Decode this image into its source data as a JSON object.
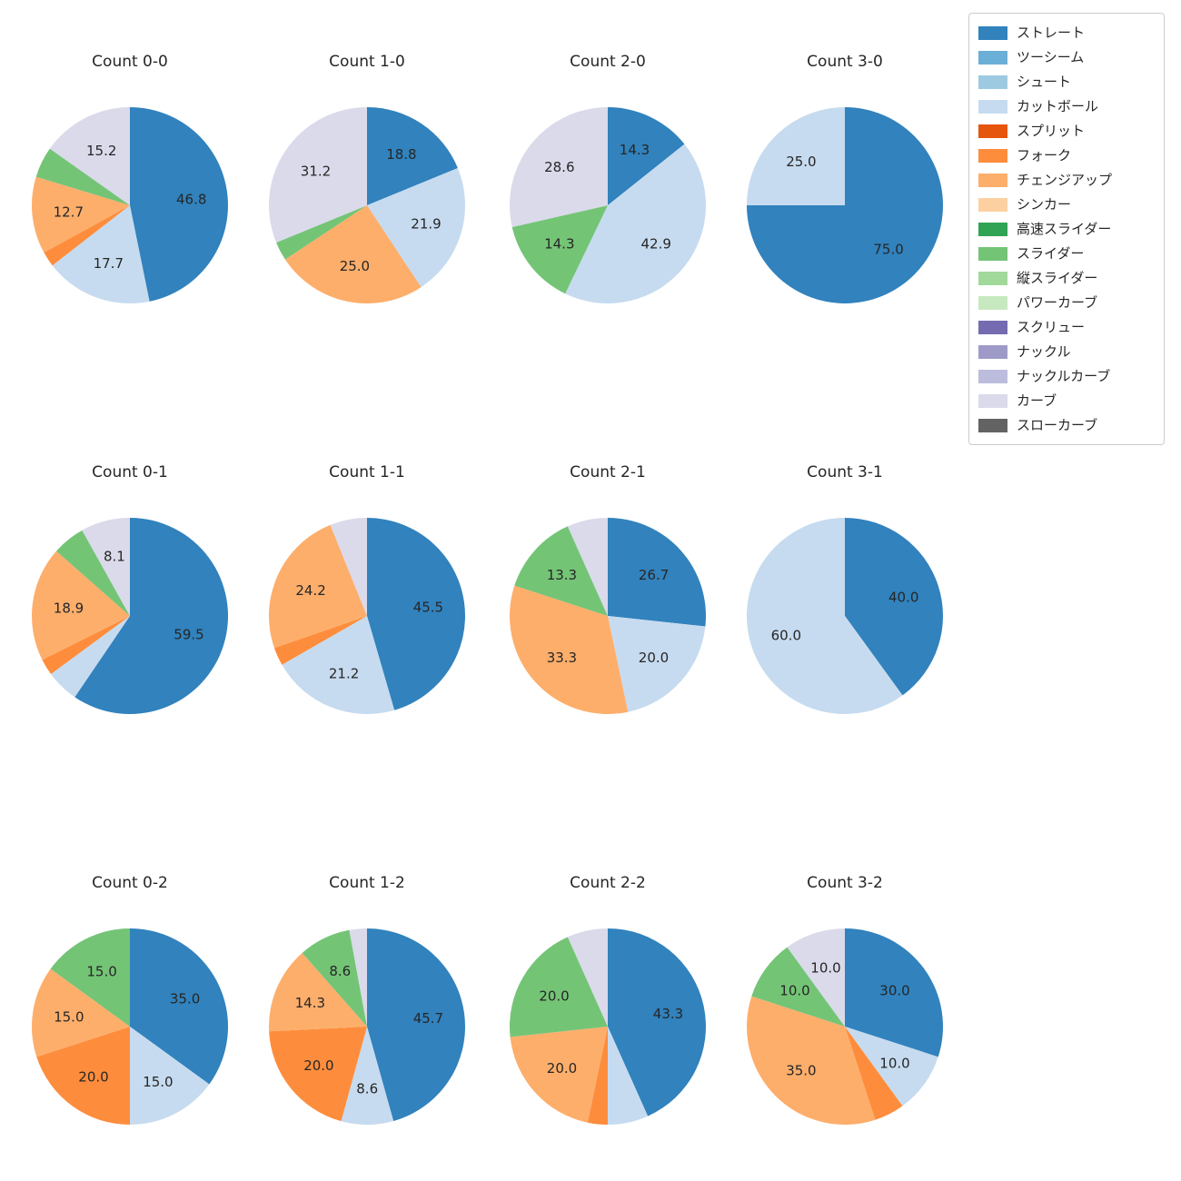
{
  "figure": {
    "background_color": "#ffffff",
    "text_color": "#262626"
  },
  "legend": {
    "items": [
      {
        "label": "ストレート",
        "color": "#3182bd"
      },
      {
        "label": "ツーシーム",
        "color": "#6baed6"
      },
      {
        "label": "シュート",
        "color": "#9ecae1"
      },
      {
        "label": "カットボール",
        "color": "#c6dbef"
      },
      {
        "label": "スプリット",
        "color": "#e6550d"
      },
      {
        "label": "フォーク",
        "color": "#fd8d3c"
      },
      {
        "label": "チェンジアップ",
        "color": "#fdae6b"
      },
      {
        "label": "シンカー",
        "color": "#fdd0a2"
      },
      {
        "label": "高速スライダー",
        "color": "#31a354"
      },
      {
        "label": "スライダー",
        "color": "#74c476"
      },
      {
        "label": "縦スライダー",
        "color": "#a1d99b"
      },
      {
        "label": "パワーカーブ",
        "color": "#c7e9c0"
      },
      {
        "label": "スクリュー",
        "color": "#756bb1"
      },
      {
        "label": "ナックル",
        "color": "#9e9ac8"
      },
      {
        "label": "ナックルカーブ",
        "color": "#bcbddc"
      },
      {
        "label": "カーブ",
        "color": "#dadaeb"
      },
      {
        "label": "スローカーブ",
        "color": "#636363"
      }
    ]
  },
  "chart_data": {
    "type": "pie",
    "grid": {
      "columns": 4,
      "rows": 3
    },
    "start_angle": "top",
    "direction": "clockwise",
    "legend_position": "top-right",
    "charts": [
      {
        "title": "Count 0-0",
        "slices": [
          {
            "name": "ストレート",
            "value": 46.8,
            "label": "46.8"
          },
          {
            "name": "カットボール",
            "value": 17.7,
            "label": "17.7"
          },
          {
            "name": "フォーク",
            "value": 2.5,
            "label": ""
          },
          {
            "name": "チェンジアップ",
            "value": 12.7,
            "label": "12.7"
          },
          {
            "name": "スライダー",
            "value": 5.1,
            "label": ""
          },
          {
            "name": "カーブ",
            "value": 15.2,
            "label": "15.2"
          }
        ]
      },
      {
        "title": "Count 1-0",
        "slices": [
          {
            "name": "ストレート",
            "value": 18.8,
            "label": "18.8"
          },
          {
            "name": "カットボール",
            "value": 21.9,
            "label": "21.9"
          },
          {
            "name": "チェンジアップ",
            "value": 25.0,
            "label": "25.0"
          },
          {
            "name": "スライダー",
            "value": 3.1,
            "label": ""
          },
          {
            "name": "カーブ",
            "value": 31.2,
            "label": "31.2"
          }
        ]
      },
      {
        "title": "Count 2-0",
        "slices": [
          {
            "name": "ストレート",
            "value": 14.3,
            "label": "14.3"
          },
          {
            "name": "カットボール",
            "value": 42.9,
            "label": "42.9"
          },
          {
            "name": "スライダー",
            "value": 14.3,
            "label": "14.3"
          },
          {
            "name": "カーブ",
            "value": 28.6,
            "label": "28.6"
          }
        ]
      },
      {
        "title": "Count 3-0",
        "slices": [
          {
            "name": "ストレート",
            "value": 75.0,
            "label": "75.0"
          },
          {
            "name": "カットボール",
            "value": 25.0,
            "label": "25.0"
          }
        ]
      },
      {
        "title": "Count 0-1",
        "slices": [
          {
            "name": "ストレート",
            "value": 59.5,
            "label": "59.5"
          },
          {
            "name": "カットボール",
            "value": 5.4,
            "label": ""
          },
          {
            "name": "フォーク",
            "value": 2.7,
            "label": ""
          },
          {
            "name": "チェンジアップ",
            "value": 18.9,
            "label": "18.9"
          },
          {
            "name": "スライダー",
            "value": 5.4,
            "label": ""
          },
          {
            "name": "カーブ",
            "value": 8.1,
            "label": "8.1"
          }
        ]
      },
      {
        "title": "Count 1-1",
        "slices": [
          {
            "name": "ストレート",
            "value": 45.5,
            "label": "45.5"
          },
          {
            "name": "カットボール",
            "value": 21.2,
            "label": "21.2"
          },
          {
            "name": "フォーク",
            "value": 3.0,
            "label": ""
          },
          {
            "name": "チェンジアップ",
            "value": 24.2,
            "label": "24.2"
          },
          {
            "name": "カーブ",
            "value": 6.1,
            "label": ""
          }
        ]
      },
      {
        "title": "Count 2-1",
        "slices": [
          {
            "name": "ストレート",
            "value": 26.7,
            "label": "26.7"
          },
          {
            "name": "カットボール",
            "value": 20.0,
            "label": "20.0"
          },
          {
            "name": "チェンジアップ",
            "value": 33.3,
            "label": "33.3"
          },
          {
            "name": "スライダー",
            "value": 13.3,
            "label": "13.3"
          },
          {
            "name": "カーブ",
            "value": 6.7,
            "label": ""
          }
        ]
      },
      {
        "title": "Count 3-1",
        "slices": [
          {
            "name": "ストレート",
            "value": 40.0,
            "label": "40.0"
          },
          {
            "name": "カットボール",
            "value": 60.0,
            "label": "60.0"
          }
        ]
      },
      {
        "title": "Count 0-2",
        "slices": [
          {
            "name": "ストレート",
            "value": 35.0,
            "label": "35.0"
          },
          {
            "name": "カットボール",
            "value": 15.0,
            "label": "15.0"
          },
          {
            "name": "フォーク",
            "value": 20.0,
            "label": "20.0"
          },
          {
            "name": "チェンジアップ",
            "value": 15.0,
            "label": "15.0"
          },
          {
            "name": "スライダー",
            "value": 15.0,
            "label": "15.0"
          }
        ]
      },
      {
        "title": "Count 1-2",
        "slices": [
          {
            "name": "ストレート",
            "value": 45.7,
            "label": "45.7"
          },
          {
            "name": "カットボール",
            "value": 8.6,
            "label": "8.6"
          },
          {
            "name": "フォーク",
            "value": 20.0,
            "label": "20.0"
          },
          {
            "name": "チェンジアップ",
            "value": 14.3,
            "label": "14.3"
          },
          {
            "name": "スライダー",
            "value": 8.6,
            "label": "8.6"
          },
          {
            "name": "カーブ",
            "value": 2.9,
            "label": ""
          }
        ]
      },
      {
        "title": "Count 2-2",
        "slices": [
          {
            "name": "ストレート",
            "value": 43.3,
            "label": "43.3"
          },
          {
            "name": "カットボール",
            "value": 6.7,
            "label": ""
          },
          {
            "name": "フォーク",
            "value": 3.3,
            "label": ""
          },
          {
            "name": "チェンジアップ",
            "value": 20.0,
            "label": "20.0"
          },
          {
            "name": "スライダー",
            "value": 20.0,
            "label": "20.0"
          },
          {
            "name": "カーブ",
            "value": 6.7,
            "label": ""
          }
        ]
      },
      {
        "title": "Count 3-2",
        "slices": [
          {
            "name": "ストレート",
            "value": 30.0,
            "label": "30.0"
          },
          {
            "name": "カットボール",
            "value": 10.0,
            "label": "10.0"
          },
          {
            "name": "フォーク",
            "value": 5.0,
            "label": ""
          },
          {
            "name": "チェンジアップ",
            "value": 35.0,
            "label": "35.0"
          },
          {
            "name": "スライダー",
            "value": 10.0,
            "label": "10.0"
          },
          {
            "name": "カーブ",
            "value": 10.0,
            "label": "10.0"
          }
        ]
      }
    ]
  }
}
